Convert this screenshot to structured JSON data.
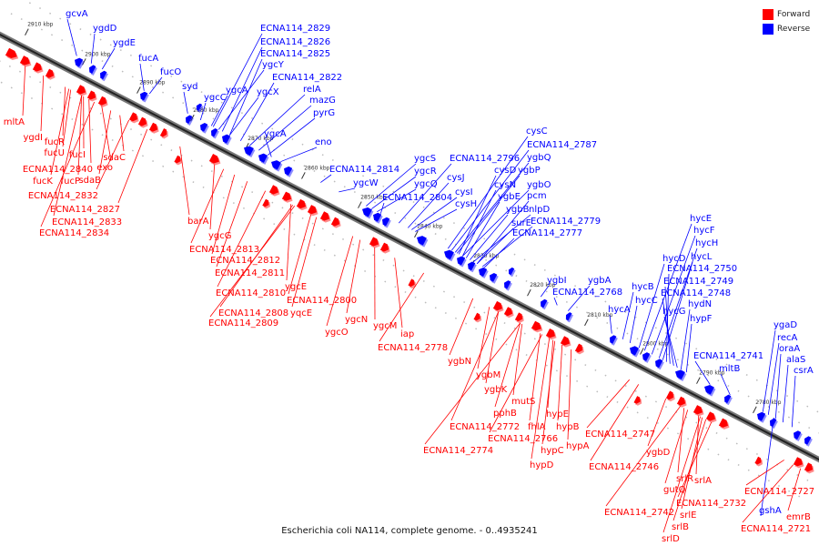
{
  "legend": {
    "forward_label": "Forward",
    "reverse_label": "Reverse",
    "forward_color": "#ff0000",
    "reverse_color": "#0000ff"
  },
  "caption": "Escherichia coli NA114, complete genome. - 0..4935241",
  "axis_ticks": [
    "2910 kbp",
    "2900 kbp",
    "2890 kbp",
    "2880 kbp",
    "2870 kbp",
    "2860 kbp",
    "2850 kbp",
    "2840 kbp",
    "2830 kbp",
    "2820 kbp",
    "2810 kbp",
    "2800 kbp",
    "2790 kbp",
    "2780 kbp"
  ],
  "reverse_genes": [
    "gcvA",
    "ygdD",
    "ygdE",
    "fucA",
    "fucO",
    "syd",
    "ygcC",
    "ygcA",
    "ygcX",
    "ygcY",
    "ECNA114_2829",
    "ECNA114_2826",
    "ECNA114_2825",
    "ECNA114_2822",
    "relA",
    "mazG",
    "pyrG",
    "ygcA",
    "eno",
    "ECNA114_2814",
    "ygcW",
    "ygcS",
    "ygcR",
    "ygcQ",
    "ECNA114_2804",
    "ECNA114_2796",
    "cysJ",
    "cysI",
    "cysH",
    "cysC",
    "ECNA114_2787",
    "ygbQ",
    "ygbP",
    "ygbO",
    "cysD",
    "cysN",
    "ygbE",
    "ygbB",
    "nlpD",
    "pcm",
    "surE",
    "ECNA114_2779",
    "ECNA114_2777",
    "ygbI",
    "ygbA",
    "ECNA114_2768",
    "hycA",
    "hycB",
    "hycC",
    "hycD",
    "hycE",
    "hycF",
    "hycH",
    "hycL",
    "ECNA114_2750",
    "ECNA114_2749",
    "ECNA114_2748",
    "hydN",
    "hycG",
    "hypF",
    "ECNA114_2741",
    "mltB",
    "ygaD",
    "recA",
    "oraA",
    "alaS",
    "csrA",
    "gshA"
  ],
  "forward_genes": [
    "mltA",
    "ygdI",
    "fucR",
    "fucU",
    "fucI",
    "fucK",
    "fucP",
    "ECNA114_2840",
    "exo",
    "sdaC",
    "sdaB",
    "ECNA114_2832",
    "ECNA114_2827",
    "ECNA114_2833",
    "ECNA114_2834",
    "barA",
    "ygcG",
    "ECNA114_2813",
    "ECNA114_2812",
    "ECNA114_2811",
    "ECNA114_2810",
    "ygcE",
    "ECNA114_2800",
    "ECNA114_2808",
    "ECNA114_2809",
    "yqcE",
    "ygcN",
    "ygcM",
    "ygcO",
    "iap",
    "ECNA114_2778",
    "ygbN",
    "ygbM",
    "ygbK",
    "mutS",
    "pphB",
    "fhlA",
    "ECNA114_2772",
    "ECNA114_2766",
    "ECNA114_2774",
    "hypE",
    "hypB",
    "hypC",
    "hypA",
    "hypD",
    "ECNA114_2747",
    "ECNA114_2746",
    "ygbD",
    "srlR",
    "gutQ",
    "srlA",
    "ECNA114_2742",
    "ECNA114_2732",
    "srlE",
    "srlB",
    "srlD",
    "ECNA114_2727",
    "ECNA114_2721",
    "emrB"
  ]
}
